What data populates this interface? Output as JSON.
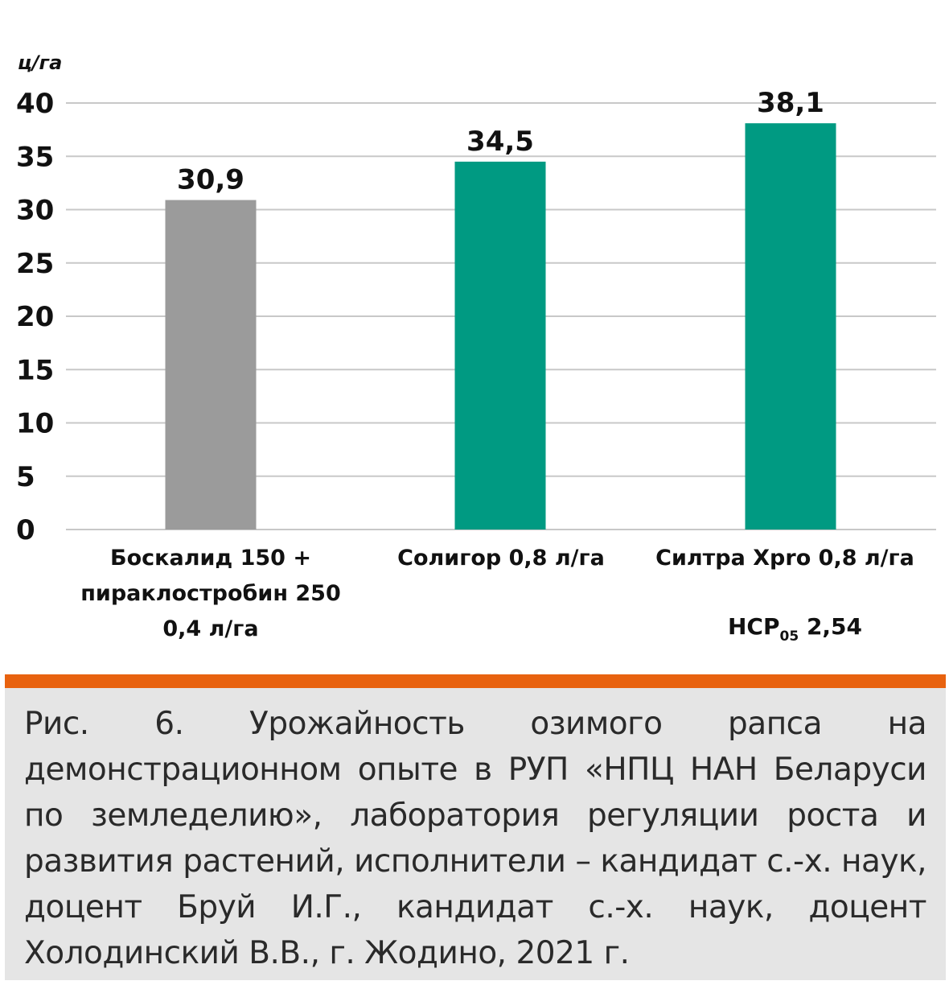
{
  "chart_data": {
    "type": "bar",
    "categories": [
      [
        "Боскалид 150 +",
        "пираклостробин 250",
        "0,4 л/га"
      ],
      [
        "Солигор 0,8 л/га"
      ],
      [
        "Силтра Xpro 0,8 л/га"
      ]
    ],
    "values": [
      30.9,
      34.5,
      38.1
    ],
    "value_labels": [
      "30,9",
      "34,5",
      "38,1"
    ],
    "bar_colors": [
      "#9b9b9b",
      "#009a82",
      "#009a82"
    ],
    "y_unit": "ц/га",
    "ylim": [
      0,
      40
    ],
    "y_ticks": [
      0,
      5,
      10,
      15,
      20,
      25,
      30,
      35,
      40
    ],
    "grid": true
  },
  "annotation": {
    "prefix": "НСР",
    "subscript": "05",
    "value": "2,54"
  },
  "caption": "Рис. 6. Урожайность озимого рапса на демонстрационном опыте в РУП «НПЦ НАН Беларуси по земледелию», лаборатория регуляции роста и развития растений, исполнители – кандидат с.-х. наук, доцент Бруй И.Г., кандидат с.-х. наук, доцент Холодинский В.В., г. Жодино, 2021 г.",
  "colors": {
    "accent": "#e8620f",
    "caption_bg": "#e5e5e5",
    "grid": "#c8c8c8"
  }
}
